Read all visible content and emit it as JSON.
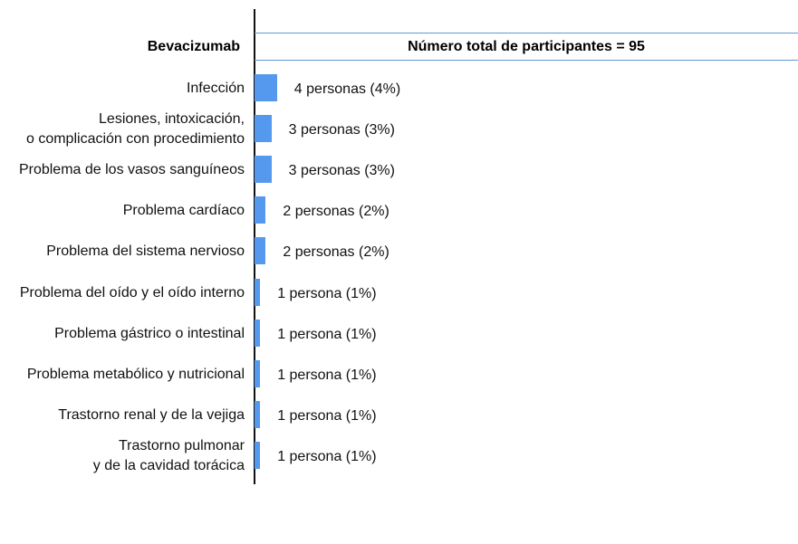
{
  "chart_data": {
    "type": "bar",
    "orientation": "horizontal",
    "title": "Bevacizumab",
    "subtitle": "Número total de participantes = 95",
    "categories": [
      "Infección",
      "Lesiones, intoxicación,\no complicación con procedimiento",
      "Problema de los vasos sanguíneos",
      "Problema cardíaco",
      "Problema del sistema nervioso",
      "Problema del oído y el oído interno",
      "Problema gástrico o intestinal",
      "Problema metabólico y nutricional",
      "Trastorno renal y de la vejiga",
      "Trastorno pulmonar\ny de la cavidad torácica"
    ],
    "values": [
      4,
      3,
      3,
      2,
      2,
      1,
      1,
      1,
      1,
      1
    ],
    "value_labels": [
      "4 personas (4%)",
      "3 personas (3%)",
      "3 personas (3%)",
      "2 personas (2%)",
      "2 personas (2%)",
      "1 persona (1%)",
      "1 persona (1%)",
      "1 persona (1%)",
      "1 persona (1%)",
      "1 persona (1%)"
    ],
    "color": "#5599ee"
  }
}
